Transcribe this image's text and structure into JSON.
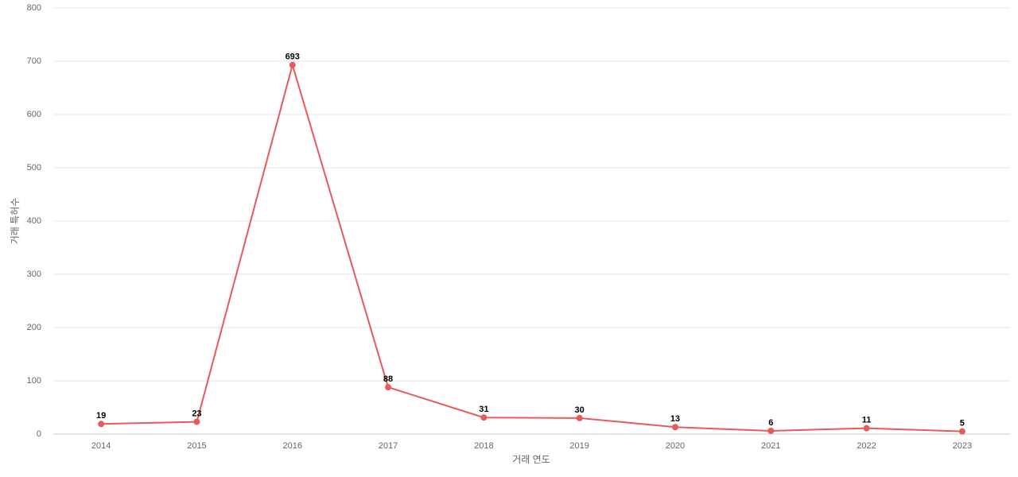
{
  "chart_data": {
    "type": "line",
    "x_label": "거래 연도",
    "y_label": "거래 특허수",
    "categories": [
      "2014",
      "2015",
      "2016",
      "2017",
      "2018",
      "2019",
      "2020",
      "2021",
      "2022",
      "2023"
    ],
    "series": [
      {
        "name": "거래 특허수",
        "color": "#e85a5a",
        "values": [
          19,
          23,
          693,
          88,
          31,
          30,
          13,
          6,
          11,
          5
        ]
      }
    ],
    "ylim": [
      0,
      800
    ],
    "yticks": [
      0,
      100,
      200,
      300,
      400,
      500,
      600,
      700,
      800
    ],
    "grid": true,
    "data_labels": true
  }
}
